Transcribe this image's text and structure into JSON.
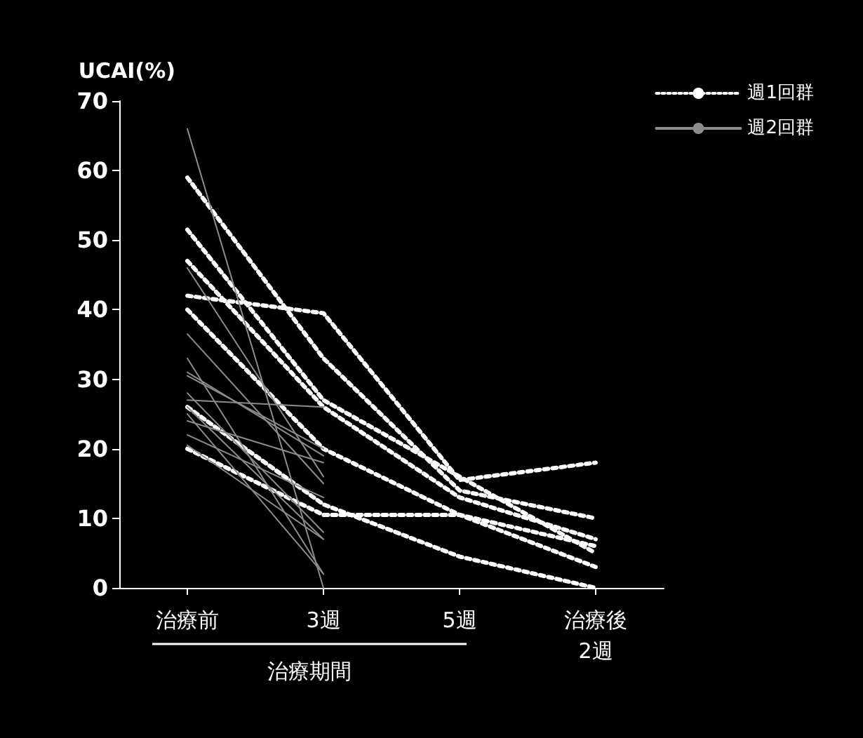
{
  "chart_data": {
    "type": "line",
    "ylabel": "UCAI(%)",
    "xlabel": "治療期間",
    "categories": [
      "治療前",
      "3週",
      "5週",
      "治療後\n2週"
    ],
    "ylim": [
      0,
      70
    ],
    "yticks": [
      0,
      10,
      20,
      30,
      40,
      50,
      60,
      70
    ],
    "grid": false,
    "legend": "top right",
    "marker": "none",
    "series": [
      {
        "name": "週1回群",
        "color": "#ffffff",
        "line_style": "dotted",
        "values": [
          59,
          33,
          14,
          10
        ]
      },
      {
        "color": "#ffffff",
        "line_style": "dotted",
        "values": [
          42,
          39.5,
          15.5,
          18
        ]
      },
      {
        "color": "#ffffff",
        "line_style": "dotted",
        "values": [
          51.5,
          27,
          16,
          5
        ]
      },
      {
        "color": "#ffffff",
        "line_style": "dotted",
        "values": [
          47,
          26,
          13,
          7
        ]
      },
      {
        "color": "#ffffff",
        "line_style": "dotted",
        "values": [
          40,
          20,
          10.5,
          6
        ]
      },
      {
        "color": "#ffffff",
        "line_style": "dotted",
        "values": [
          26,
          12,
          4.5,
          0
        ]
      },
      {
        "color": "#ffffff",
        "line_style": "dotted",
        "values": [
          20,
          10.5,
          10.5,
          3
        ]
      },
      {
        "name": "週2回群",
        "color": "#8c8c8c",
        "line_style": "solid",
        "values": [
          66,
          0,
          null,
          null
        ]
      },
      {
        "color": "#8c8c8c",
        "line_style": "solid",
        "values": [
          46,
          16,
          null,
          null
        ]
      },
      {
        "color": "#8c8c8c",
        "line_style": "solid",
        "values": [
          36.5,
          15,
          null,
          null
        ]
      },
      {
        "color": "#8c8c8c",
        "line_style": "solid",
        "values": [
          33,
          2,
          null,
          null
        ]
      },
      {
        "color": "#8c8c8c",
        "line_style": "solid",
        "values": [
          31,
          19,
          null,
          null
        ]
      },
      {
        "color": "#8c8c8c",
        "line_style": "solid",
        "values": [
          30.5,
          20,
          null,
          null
        ]
      },
      {
        "color": "#8c8c8c",
        "line_style": "solid",
        "values": [
          27,
          26,
          null,
          null
        ]
      },
      {
        "color": "#8c8c8c",
        "line_style": "solid",
        "values": [
          26,
          7,
          null,
          null
        ]
      },
      {
        "color": "#8c8c8c",
        "line_style": "solid",
        "values": [
          25,
          2,
          null,
          null
        ]
      },
      {
        "color": "#8c8c8c",
        "line_style": "solid",
        "values": [
          24,
          18,
          null,
          null
        ]
      },
      {
        "color": "#8c8c8c",
        "line_style": "solid",
        "values": [
          22,
          13,
          null,
          null
        ]
      },
      {
        "color": "#8c8c8c",
        "line_style": "solid",
        "values": [
          20.5,
          7,
          null,
          null
        ]
      },
      {
        "color": "#8c8c8c",
        "line_style": "solid",
        "values": [
          28,
          8,
          null,
          null
        ]
      }
    ]
  }
}
